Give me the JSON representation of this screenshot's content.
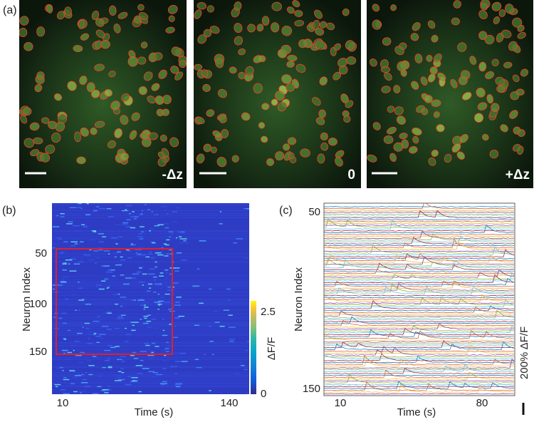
{
  "panel_a": {
    "label": "(a)",
    "images": [
      {
        "label": "-Δz"
      },
      {
        "label": "0"
      },
      {
        "label": "+Δz"
      }
    ]
  },
  "panel_b": {
    "label": "(b)",
    "y_axis_label": "Neuron Index",
    "y_ticks": [
      "50",
      "100",
      "150"
    ],
    "x_axis_label": "Time (s)",
    "x_ticks": [
      "10",
      "140"
    ],
    "colorbar_label": "ΔF/F",
    "colorbar_ticks": [
      "2.5",
      "0"
    ]
  },
  "panel_c": {
    "label": "(c)",
    "y_axis_label": "Neuron Index",
    "y_ticks": [
      "50",
      "150"
    ],
    "x_axis_label": "Time (s)",
    "x_ticks": [
      "10",
      "80"
    ],
    "scale_bar_label": "200% ΔF/F"
  }
}
